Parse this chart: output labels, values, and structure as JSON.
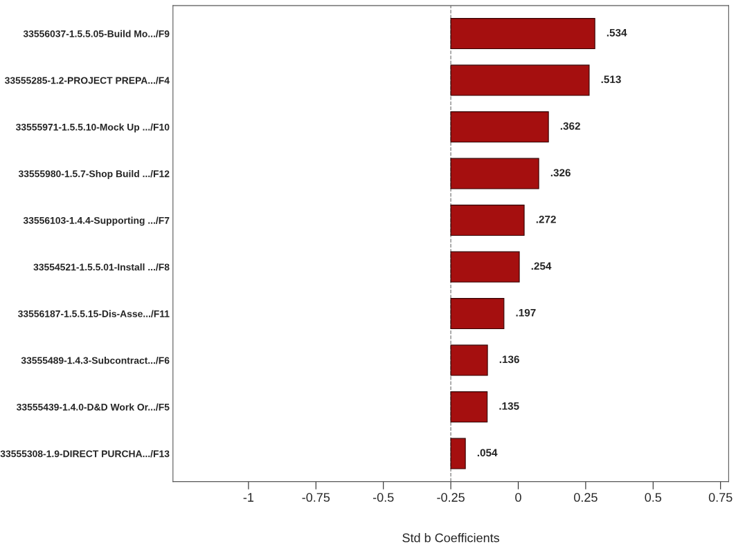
{
  "chart_data": {
    "type": "bar",
    "orientation": "horizontal",
    "xlabel": "Std b Coefficients",
    "categories": [
      "33556037-1.5.5.05-Build Mo.../F9",
      "33555285-1.2-PROJECT PREPA.../F4",
      "33555971-1.5.5.10-Mock Up .../F10",
      "33555980-1.5.7-Shop Build .../F12",
      "33556103-1.4.4-Supporting .../F7",
      "33554521-1.5.5.01-Install .../F8",
      "33556187-1.5.5.15-Dis-Asse.../F11",
      "33555489-1.4.3-Subcontract.../F6",
      "33555439-1.4.0-D&D Work Or.../F5",
      "33555308-1.9-DIRECT PURCHA.../F13"
    ],
    "values": [
      0.534,
      0.513,
      0.362,
      0.326,
      0.272,
      0.254,
      0.197,
      0.136,
      0.135,
      0.054
    ],
    "value_labels": [
      ".534",
      ".513",
      ".362",
      ".326",
      ".272",
      ".254",
      ".197",
      ".136",
      ".135",
      ".054"
    ],
    "base": [
      -0.25,
      -0.25,
      -0.25,
      -0.25,
      -0.25,
      -0.25,
      -0.25,
      -0.25,
      -0.25,
      -0.25
    ],
    "color": "#a50f0f",
    "xlim": [
      -1.28,
      0.78
    ],
    "xticks": [
      -1,
      -0.75,
      -0.5,
      -0.25,
      0,
      0.25,
      0.5,
      0.75
    ],
    "ref_lines": [
      {
        "axis": "x",
        "value": -0.25,
        "line_style": "dashed",
        "color": "#888888"
      }
    ],
    "grid": false,
    "legend": false
  }
}
